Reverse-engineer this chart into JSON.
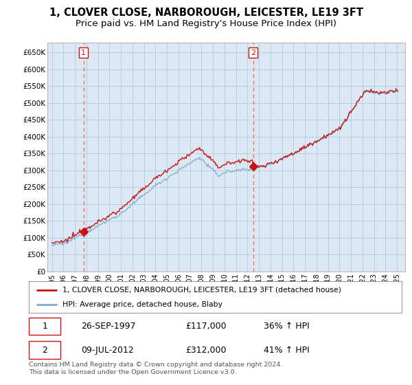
{
  "title": "1, CLOVER CLOSE, NARBOROUGH, LEICESTER, LE19 3FT",
  "subtitle": "Price paid vs. HM Land Registry's House Price Index (HPI)",
  "title_fontsize": 10.5,
  "subtitle_fontsize": 9.5,
  "ylim": [
    0,
    680000
  ],
  "yticks": [
    0,
    50000,
    100000,
    150000,
    200000,
    250000,
    300000,
    350000,
    400000,
    450000,
    500000,
    550000,
    600000,
    650000
  ],
  "ytick_labels": [
    "£0",
    "£50K",
    "£100K",
    "£150K",
    "£200K",
    "£250K",
    "£300K",
    "£350K",
    "£400K",
    "£450K",
    "£500K",
    "£550K",
    "£600K",
    "£650K"
  ],
  "hpi_color": "#7aadcf",
  "property_color": "#cc1111",
  "dashed_color": "#e87070",
  "chart_bg": "#dce9f5",
  "grid_color": "#b0c8dc",
  "legend_property": "1, CLOVER CLOSE, NARBOROUGH, LEICESTER, LE19 3FT (detached house)",
  "legend_hpi": "HPI: Average price, detached house, Blaby",
  "sale1_date": "26-SEP-1997",
  "sale1_price": "£117,000",
  "sale1_pct": "36% ↑ HPI",
  "sale2_date": "09-JUL-2012",
  "sale2_price": "£312,000",
  "sale2_pct": "41% ↑ HPI",
  "sale1_year": 1997.75,
  "sale2_year": 2012.53,
  "footnote": "Contains HM Land Registry data © Crown copyright and database right 2024.\nThis data is licensed under the Open Government Licence v3.0."
}
